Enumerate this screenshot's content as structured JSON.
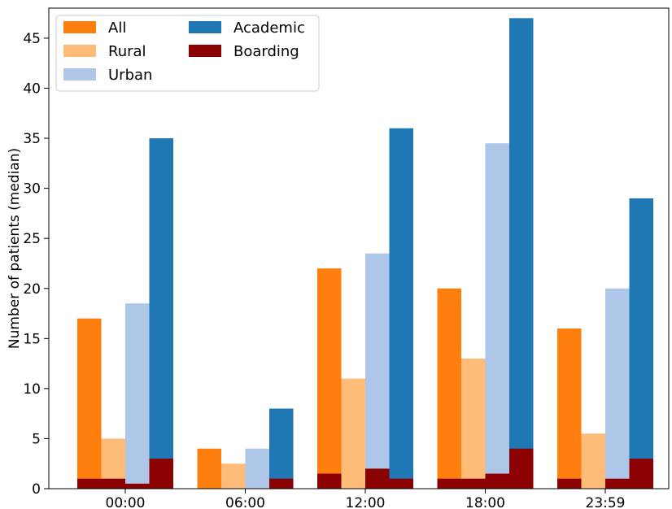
{
  "chart_data": {
    "type": "bar",
    "layout": "overlapping-grouped",
    "title": "",
    "xlabel": "",
    "ylabel": "Number of patients (median)",
    "ylim": [
      0,
      48
    ],
    "yticks": [
      0,
      5,
      10,
      15,
      20,
      25,
      30,
      35,
      40,
      45
    ],
    "categories": [
      "00:00",
      "06:00",
      "12:00",
      "18:00",
      "23:59"
    ],
    "grid": false,
    "legend": {
      "position": "top-left",
      "columns": 2
    },
    "series": [
      {
        "name": "All",
        "color": "#ff7f0e",
        "slot": 0,
        "layer": "back",
        "values": [
          17,
          4,
          22,
          20,
          16
        ]
      },
      {
        "name": "Rural",
        "color": "#ffbb78",
        "slot": 1,
        "layer": "back",
        "values": [
          5,
          2.5,
          11,
          13,
          5.5
        ]
      },
      {
        "name": "Urban",
        "color": "#aec7e8",
        "slot": 2,
        "layer": "back",
        "values": [
          18.5,
          4,
          23.5,
          34.5,
          20
        ]
      },
      {
        "name": "Academic",
        "color": "#1f77b4",
        "slot": 3,
        "layer": "back",
        "values": [
          35,
          8,
          36,
          47,
          29
        ]
      },
      {
        "name": "Boarding",
        "color": "#8b0000",
        "slot": "all",
        "layer": "front",
        "values": [
          [
            1,
            1,
            0.5,
            3
          ],
          [
            0,
            0,
            0,
            1
          ],
          [
            1.5,
            0,
            2,
            1
          ],
          [
            1,
            1,
            1.5,
            4
          ],
          [
            1,
            0,
            1,
            3
          ]
        ]
      }
    ]
  }
}
